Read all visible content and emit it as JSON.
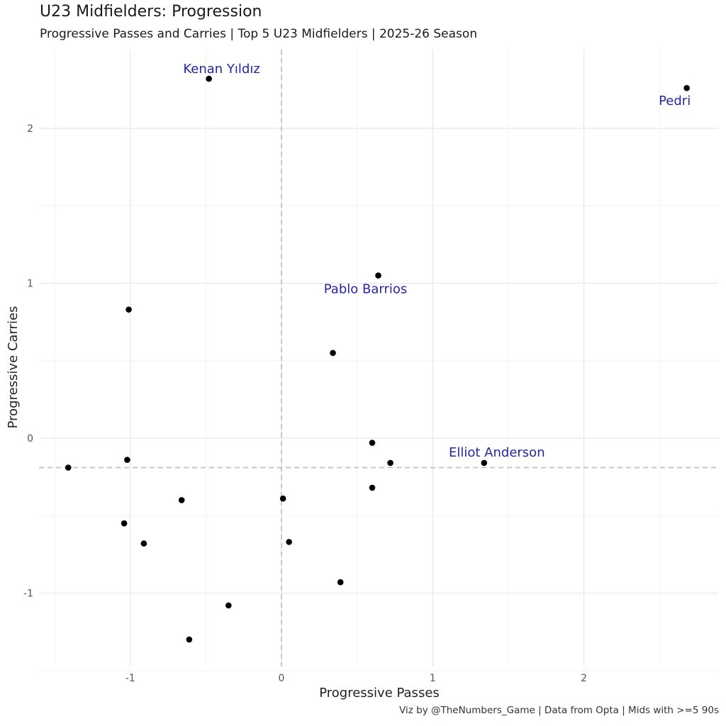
{
  "chart_data": {
    "type": "scatter",
    "title": "U23 Midfielders: Progression",
    "subtitle": "Progressive Passes and Carries | Top 5 U23 Midfielders | 2025-26 Season",
    "caption": "Viz by @TheNumbers_Game | Data from Opta | Mids with >=5 90s",
    "xlabel": "Progressive Passes",
    "ylabel": "Progressive Carries",
    "xlim": [
      -1.5,
      2.9
    ],
    "ylim": [
      -1.5,
      2.5
    ],
    "x_ticks": [
      -1,
      0,
      1,
      2
    ],
    "y_ticks": [
      -1,
      0,
      1,
      2
    ],
    "grid": true,
    "reference_lines": {
      "vertical_x": 0.0,
      "horizontal_y": -0.19
    },
    "points": [
      {
        "x": -0.48,
        "y": 2.32,
        "label": "Kenan Yıldız"
      },
      {
        "x": 2.68,
        "y": 2.26,
        "label": "Pedri"
      },
      {
        "x": 0.64,
        "y": 1.05,
        "label": "Pablo Barrios"
      },
      {
        "x": 1.34,
        "y": -0.16,
        "label": "Elliot Anderson"
      },
      {
        "x": -1.01,
        "y": 0.83,
        "label": ""
      },
      {
        "x": 0.34,
        "y": 0.55,
        "label": ""
      },
      {
        "x": 0.6,
        "y": -0.03,
        "label": ""
      },
      {
        "x": 0.72,
        "y": -0.16,
        "label": ""
      },
      {
        "x": -1.41,
        "y": -0.19,
        "label": ""
      },
      {
        "x": -1.02,
        "y": -0.14,
        "label": ""
      },
      {
        "x": 0.6,
        "y": -0.32,
        "label": ""
      },
      {
        "x": -0.66,
        "y": -0.4,
        "label": ""
      },
      {
        "x": 0.01,
        "y": -0.39,
        "label": ""
      },
      {
        "x": -1.04,
        "y": -0.55,
        "label": ""
      },
      {
        "x": -0.91,
        "y": -0.68,
        "label": ""
      },
      {
        "x": 0.05,
        "y": -0.67,
        "label": ""
      },
      {
        "x": 0.39,
        "y": -0.93,
        "label": ""
      },
      {
        "x": -0.35,
        "y": -1.08,
        "label": ""
      },
      {
        "x": -0.61,
        "y": -1.3,
        "label": ""
      }
    ],
    "colors": {
      "point": "#000000",
      "label": "#2626a6",
      "grid": "#ebebeb",
      "reference": "#bdbdbd"
    }
  }
}
